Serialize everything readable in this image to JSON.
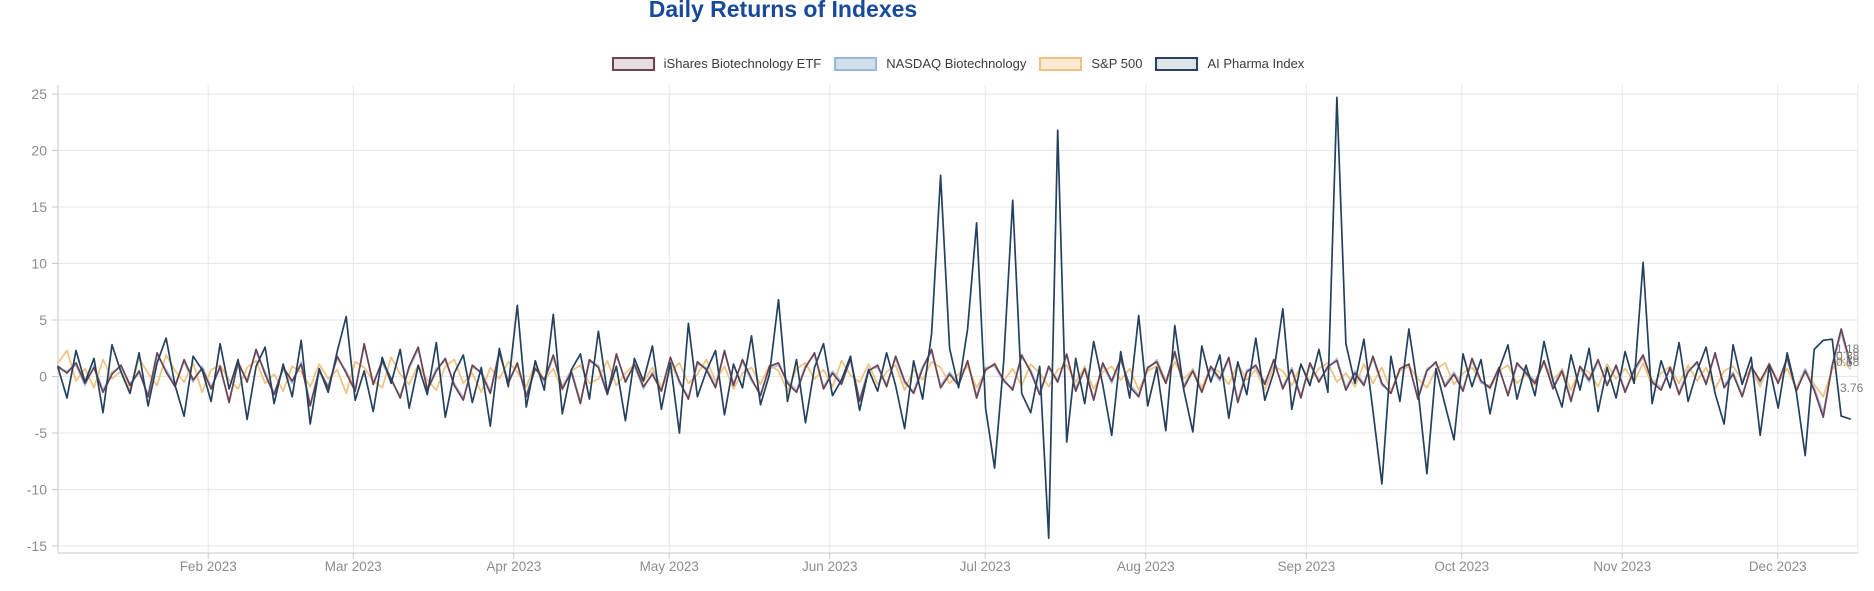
{
  "title": {
    "text": "Daily Returns of Indexes",
    "color": "#17499d"
  },
  "legend": {
    "items": [
      {
        "label": "iShares Biotechnology ETF",
        "color": "#6d4352",
        "fill": "rgba(109,67,82,0.18)"
      },
      {
        "label": "NASDAQ Biotechnology",
        "color": "#9ab8d8",
        "fill": "rgba(154,184,216,0.45)"
      },
      {
        "label": "S&P 500",
        "color": "#f0c27d",
        "fill": "rgba(240,194,125,0.35)"
      },
      {
        "label": "AI Pharma Index",
        "color": "#24415f",
        "fill": "rgba(36,65,95,0.15)"
      }
    ]
  },
  "axes": {
    "yticks": [
      25,
      20,
      15,
      10,
      5,
      0,
      -5,
      -10,
      -15
    ],
    "xticks": [
      {
        "label": "Feb 2023",
        "day": 29
      },
      {
        "label": "Mar 2023",
        "day": 57
      },
      {
        "label": "Apr 2023",
        "day": 88
      },
      {
        "label": "May 2023",
        "day": 118
      },
      {
        "label": "Jun 2023",
        "day": 149
      },
      {
        "label": "Jul 2023",
        "day": 179
      },
      {
        "label": "Aug 2023",
        "day": 210
      },
      {
        "label": "Sep 2023",
        "day": 241
      },
      {
        "label": "Oct 2023",
        "day": 271
      },
      {
        "label": "Nov 2023",
        "day": 302
      },
      {
        "label": "Dec 2023",
        "day": 332
      }
    ]
  },
  "chart_data": {
    "type": "line",
    "title": "Daily Returns of Indexes",
    "xlabel": "",
    "ylabel": "",
    "x_description": "Daily returns (%) sampled over trading days, Jan 3 2023 - Dec 15 2023; x values evenly spaced over days 0-346 since Jan 3 2023",
    "x_range_days": [
      0,
      347.5
    ],
    "ylim": [
      -15.6,
      25.8
    ],
    "grid": true,
    "legend_position": "top-center",
    "end_labels": [
      "1.18",
      "0.88",
      "0.68",
      "-3.76"
    ],
    "series": [
      {
        "name": "iShares Biotechnology ETF",
        "color": "#6d4352",
        "end_label": "1.18",
        "values": [
          0.9,
          0.3,
          1.2,
          -0.6,
          0.8,
          -1.4,
          0.2,
          1.0,
          -0.8,
          0.5,
          -1.8,
          2.1,
          0.4,
          -0.9,
          1.5,
          -0.3,
          0.7,
          -1.1,
          0.9,
          -2.3,
          1.3,
          -0.5,
          2.4,
          0.2,
          -1.6,
          0.8,
          -0.4,
          1.1,
          -2.6,
          0.6,
          -1.0,
          1.8,
          0.3,
          -1.3,
          2.9,
          -0.7,
          1.4,
          -0.2,
          -1.9,
          0.9,
          2.6,
          -1.2,
          0.5,
          1.6,
          -0.8,
          -2.1,
          1.0,
          0.3,
          -1.5,
          2.2,
          -0.6,
          1.2,
          -1.8,
          0.7,
          -0.3,
          1.9,
          -1.1,
          0.4,
          -2.4,
          1.5,
          0.8,
          -1.6,
          2.0,
          -0.5,
          1.1,
          -0.9,
          0.2,
          -1.3,
          1.7,
          -0.4,
          -2.0,
          1.3,
          0.6,
          -1.0,
          2.3,
          -0.8,
          1.5,
          -0.2,
          -1.7,
          0.9,
          1.2,
          -0.6,
          -1.4,
          0.8,
          2.1,
          -1.1,
          0.3,
          -0.7,
          1.6,
          -2.2,
          0.5,
          1.0,
          -0.9,
          1.8,
          -0.4,
          -1.5,
          0.7,
          2.4,
          -1.0,
          0.2,
          -0.8,
          1.4,
          -1.9,
          0.6,
          1.1,
          -0.3,
          -1.2,
          1.9,
          0.4,
          -1.6,
          0.9,
          -0.5,
          2.0,
          -1.3,
          0.7,
          -2.1,
          1.2,
          -0.4,
          1.6,
          -0.9,
          -1.8,
          0.8,
          1.3,
          -0.6,
          2.2,
          -1.0,
          0.5,
          -1.4,
          0.9,
          -0.2,
          1.7,
          -2.3,
          0.4,
          1.0,
          -0.7,
          1.5,
          -1.1,
          0.6,
          -1.9,
          1.2,
          -0.5,
          0.9,
          1.4,
          -1.2,
          0.3,
          -0.8,
          1.8,
          -0.6,
          -1.5,
          0.7,
          1.1,
          -2.0,
          0.5,
          1.3,
          -0.9,
          0.2,
          -1.3,
          1.6,
          -0.4,
          -1.0,
          0.8,
          -1.7,
          1.2,
          0.3,
          -0.6,
          1.4,
          -1.1,
          0.5,
          -2.2,
          0.9,
          -0.3,
          1.5,
          -0.8,
          1.0,
          -1.4,
          0.6,
          1.9,
          -0.5,
          -1.2,
          0.8,
          -1.6,
          0.4,
          1.3,
          -0.7,
          2.1,
          -1.0,
          0.2,
          -1.8,
          0.9,
          -0.4,
          1.1,
          -0.6,
          1.7,
          -1.3,
          0.5,
          -1.2,
          -3.6,
          1.0,
          4.2,
          1.18
        ]
      },
      {
        "name": "NASDAQ Biotechnology",
        "color": "#a9c4e0",
        "end_label": "0.88",
        "values": [
          0.7,
          0.5,
          1.0,
          -0.8,
          1.0,
          -1.2,
          0.4,
          0.8,
          -0.6,
          0.3,
          -1.6,
          1.9,
          0.6,
          -0.7,
          1.3,
          -0.5,
          0.9,
          -0.9,
          0.7,
          -2.1,
          1.1,
          -0.3,
          2.2,
          0.4,
          -1.4,
          0.6,
          -0.6,
          1.3,
          -2.4,
          0.4,
          -0.8,
          1.6,
          0.5,
          -1.1,
          2.7,
          -0.5,
          1.2,
          -0.4,
          -1.7,
          0.7,
          2.4,
          -1.0,
          0.7,
          1.4,
          -0.6,
          -1.9,
          0.8,
          0.5,
          -1.3,
          2.0,
          -0.4,
          1.0,
          -1.6,
          0.9,
          -0.5,
          1.7,
          -0.9,
          0.6,
          -2.2,
          1.3,
          1.0,
          -1.4,
          1.8,
          -0.3,
          0.9,
          -1.1,
          0.4,
          -1.1,
          1.5,
          -0.6,
          -1.8,
          1.1,
          0.8,
          -0.8,
          2.1,
          -0.6,
          1.3,
          -0.4,
          -1.5,
          0.7,
          1.0,
          -0.4,
          -1.2,
          1.0,
          1.9,
          -0.9,
          0.5,
          -0.5,
          1.4,
          -2.0,
          0.7,
          0.8,
          -0.7,
          1.6,
          -0.6,
          -1.3,
          0.9,
          2.2,
          -0.8,
          0.4,
          -0.6,
          1.2,
          -1.7,
          0.8,
          0.9,
          -0.5,
          -1.0,
          1.7,
          0.6,
          -1.4,
          0.7,
          -0.3,
          1.8,
          -1.1,
          0.9,
          -1.9,
          1.0,
          -0.6,
          1.4,
          -0.7,
          -1.6,
          0.6,
          1.5,
          -0.4,
          2.0,
          -0.8,
          0.7,
          -1.2,
          0.7,
          -0.4,
          1.5,
          -2.1,
          0.6,
          0.8,
          -0.5,
          1.3,
          -0.9,
          0.8,
          -1.7,
          1.0,
          -0.3,
          0.7,
          1.6,
          -1.0,
          0.5,
          -0.6,
          1.6,
          -0.8,
          -1.3,
          0.5,
          0.9,
          -1.8,
          0.7,
          1.1,
          -0.7,
          0.4,
          -1.1,
          1.4,
          -0.6,
          -0.8,
          0.6,
          -1.5,
          1.0,
          0.5,
          -0.4,
          1.2,
          -0.9,
          0.7,
          -2.0,
          0.7,
          -0.5,
          1.3,
          -0.6,
          0.8,
          -1.2,
          0.4,
          1.7,
          -0.3,
          -1.0,
          0.6,
          -1.4,
          0.6,
          1.1,
          -0.5,
          1.9,
          -0.8,
          0.4,
          -1.6,
          0.7,
          -0.6,
          0.9,
          -0.4,
          1.5,
          -1.1,
          0.7,
          -1.0,
          -3.2,
          0.8,
          3.9,
          0.88
        ]
      },
      {
        "name": "S&P 500",
        "color": "#f0c27d",
        "end_label": "0.68",
        "values": [
          1.2,
          2.3,
          -0.4,
          0.7,
          -1.0,
          1.5,
          -0.2,
          0.5,
          -1.2,
          1.6,
          0.3,
          -0.8,
          1.9,
          0.5,
          -0.5,
          1.2,
          -1.4,
          0.6,
          1.0,
          -0.3,
          -1.1,
          0.8,
          1.4,
          -0.6,
          0.2,
          -1.3,
          0.9,
          0.4,
          -0.9,
          1.1,
          -0.2,
          0.6,
          -1.5,
          1.3,
          0.8,
          -0.4,
          -1.0,
          1.7,
          0.2,
          -0.7,
          1.0,
          -0.3,
          -1.2,
          0.9,
          1.5,
          -0.6,
          0.3,
          -1.4,
          0.8,
          -0.2,
          1.3,
          0.4,
          -0.9,
          1.1,
          -0.3,
          0.7,
          -1.2,
          0.5,
          1.0,
          -0.6,
          -0.2,
          1.4,
          -0.8,
          0.3,
          1.1,
          -0.5,
          0.8,
          -1.0,
          0.4,
          1.2,
          -0.6,
          0.2,
          1.5,
          -0.4,
          0.9,
          -1.1,
          0.3,
          0.8,
          -0.7,
          1.0,
          0.5,
          -1.3,
          0.7,
          1.2,
          -0.2,
          0.6,
          -0.9,
          1.4,
          0.1,
          -0.5,
          1.1,
          -0.7,
          0.4,
          1.0,
          -1.2,
          0.6,
          -0.3,
          1.3,
          0.8,
          -0.6,
          0.2,
          0.9,
          -1.0,
          0.5,
          1.2,
          -0.4,
          0.7,
          -0.8,
          1.1,
          0.3,
          -0.9,
          0.6,
          1.0,
          -0.5,
          0.8,
          -1.1,
          0.4,
          0.9,
          -0.3,
          0.7,
          -1.2,
          0.5,
          0.9,
          -0.6,
          1.3,
          -0.2,
          0.6,
          -1.0,
          0.8,
          0.4,
          -0.7,
          1.1,
          -0.3,
          0.6,
          -1.2,
          0.9,
          0.5,
          -0.8,
          1.0,
          -0.4,
          0.7,
          1.2,
          -0.5,
          0.3,
          -0.9,
          1.1,
          -0.6,
          0.8,
          -1.3,
          0.5,
          0.9,
          -0.2,
          -1.0,
          0.6,
          1.2,
          -0.7,
          0.3,
          0.8,
          -0.4,
          -1.1,
          0.5,
          1.0,
          -0.6,
          0.2,
          -0.8,
          1.3,
          -0.3,
          0.6,
          -1.2,
          0.7,
          0.4,
          -0.9,
          1.1,
          -0.2,
          0.7,
          -0.5,
          1.2,
          -0.8,
          0.3,
          0.9,
          -0.6,
          1.0,
          -0.4,
          0.8,
          -1.1,
          0.5,
          0.9,
          -0.3,
          0.6,
          -0.9,
          1.2,
          -0.5,
          0.7,
          -1.0,
          0.4,
          -0.7,
          -1.8,
          0.6,
          1.5,
          0.68
        ]
      },
      {
        "name": "AI Pharma Index",
        "color": "#24415f",
        "end_label": "-3.76",
        "values": [
          0.8,
          -1.9,
          2.3,
          -0.5,
          1.6,
          -3.2,
          2.8,
          0.4,
          -1.5,
          2.1,
          -2.6,
          1.2,
          3.4,
          -0.8,
          -3.5,
          1.8,
          0.6,
          -2.2,
          2.9,
          -1.1,
          1.5,
          -3.8,
          0.9,
          2.6,
          -2.4,
          1.1,
          -1.8,
          3.2,
          -4.2,
          0.7,
          -1.4,
          2.2,
          5.3,
          -2.1,
          0.5,
          -3.1,
          1.7,
          -0.6,
          2.4,
          -2.8,
          1.0,
          -1.6,
          3.0,
          -3.6,
          0.3,
          1.9,
          -2.3,
          0.8,
          -4.4,
          2.5,
          -0.9,
          6.3,
          -2.7,
          1.4,
          -1.2,
          5.5,
          -3.3,
          0.6,
          2.0,
          -2.0,
          4.0,
          -1.5,
          0.9,
          -3.9,
          1.6,
          -0.4,
          2.7,
          -2.9,
          1.2,
          -5.0,
          4.7,
          -1.8,
          0.5,
          2.3,
          -3.4,
          1.1,
          -1.0,
          3.6,
          -2.5,
          0.2,
          6.8,
          -2.2,
          1.5,
          -4.1,
          0.8,
          2.9,
          -1.7,
          -0.3,
          1.8,
          -3.0,
          0.6,
          -1.3,
          2.1,
          -0.8,
          -4.6,
          1.4,
          -2.0,
          3.8,
          17.8,
          2.5,
          -1.0,
          4.2,
          13.6,
          -2.8,
          -8.1,
          1.2,
          15.6,
          -1.5,
          -3.2,
          0.9,
          -14.3,
          21.8,
          -5.8,
          1.6,
          -2.4,
          3.1,
          -0.7,
          -5.2,
          2.2,
          -1.9,
          5.4,
          -2.6,
          0.8,
          -4.8,
          4.5,
          -1.2,
          -4.9,
          2.7,
          -0.5,
          1.9,
          -3.7,
          1.3,
          -1.6,
          3.4,
          -2.1,
          0.4,
          6.0,
          -2.9,
          1.1,
          -0.8,
          2.4,
          -1.4,
          24.7,
          2.9,
          -0.6,
          3.3,
          -3.0,
          -9.5,
          1.8,
          -2.2,
          4.2,
          -1.1,
          -8.6,
          0.7,
          -2.5,
          -5.6,
          2.0,
          -0.9,
          1.5,
          -3.3,
          0.6,
          2.8,
          -2.0,
          1.0,
          -1.7,
          3.1,
          -0.4,
          -2.7,
          1.9,
          -1.2,
          2.5,
          -3.1,
          0.8,
          -1.9,
          2.2,
          -0.6,
          10.1,
          -2.4,
          1.4,
          -1.0,
          3.0,
          -2.2,
          0.5,
          2.6,
          -1.5,
          -4.2,
          2.8,
          -0.7,
          1.7,
          -5.2,
          0.9,
          -2.8,
          2.1,
          -1.3,
          -7.0,
          2.4,
          3.2,
          3.3,
          -3.5,
          -3.76
        ]
      }
    ]
  },
  "colors": {
    "grid": "#e7e7e7",
    "axis": "#c8c8c8",
    "tick_label": "#8c8c8c",
    "end_label": "#7b7b7b",
    "background": "#ffffff"
  }
}
